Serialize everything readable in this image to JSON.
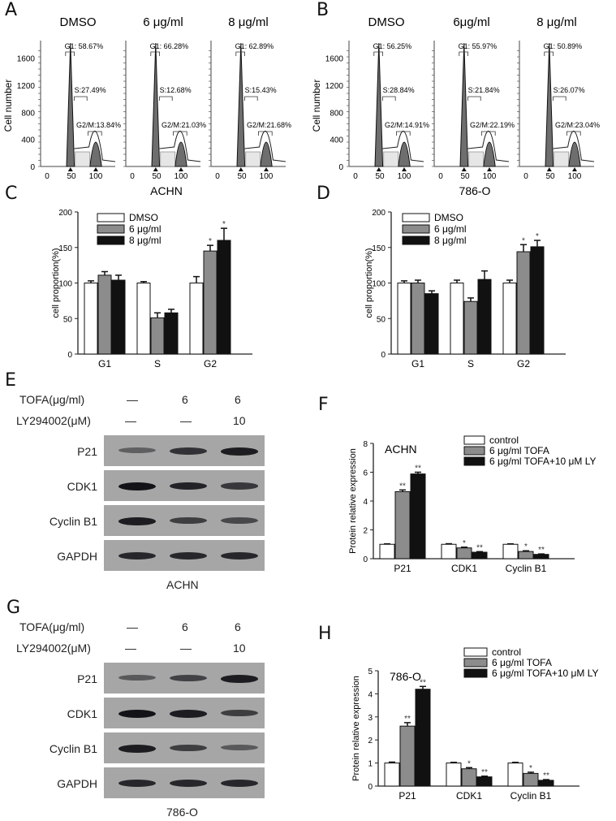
{
  "panels": {
    "A": {
      "letter": "A",
      "cell_line": "ACHN"
    },
    "B": {
      "letter": "B",
      "cell_line": "786-O"
    },
    "C": {
      "letter": "C"
    },
    "D": {
      "letter": "D"
    },
    "E": {
      "letter": "E",
      "cell_line": "ACHN"
    },
    "F": {
      "letter": "F"
    },
    "G": {
      "letter": "G",
      "cell_line": "786-O"
    },
    "H": {
      "letter": "H"
    }
  },
  "blot": {
    "row_labels": {
      "tofa": "TOFA(μg/ml)",
      "ly": "LY294002(μM)"
    },
    "tofa_values": [
      "—",
      "6",
      "6"
    ],
    "ly_values": [
      "—",
      "—",
      "10"
    ],
    "proteins": [
      "P21",
      "CDK1",
      "Cyclin B1",
      "GAPDH"
    ]
  },
  "colors": {
    "control": "#ffffff",
    "mid": "#8c8c8c",
    "high": "#111111",
    "peak_fill": "#6e6e6e",
    "blot_bg": "#a6a6a6"
  },
  "chart_data": [
    {
      "id": "A",
      "type": "histogram",
      "title": "ACHN",
      "ylabel": "Cell number",
      "yticks": [
        0,
        400,
        800,
        1200,
        1600
      ],
      "xticks": [
        0,
        50,
        100
      ],
      "subplots": [
        {
          "title": "DMSO",
          "G1": "G1: 58.67%",
          "S": "S:27.49%",
          "G2M": "G2/M:13.84%"
        },
        {
          "title": "6 μg/ml",
          "G1": "G1: 66.28%",
          "S": "S:12.68%",
          "G2M": "G2/M:21.03%"
        },
        {
          "title": "8 μg/ml",
          "G1": "G1: 62.89%",
          "S": "S:15.43%",
          "G2M": "G2/M:21.68%"
        }
      ]
    },
    {
      "id": "B",
      "type": "histogram",
      "title": "786-O",
      "ylabel": "Cell number",
      "yticks": [
        0,
        400,
        800,
        1200,
        1600
      ],
      "xticks": [
        0,
        50,
        100
      ],
      "subplots": [
        {
          "title": "DMSO",
          "G1": "G1: 56.25%",
          "S": "S:28.84%",
          "G2M": "G2/M:14.91%"
        },
        {
          "title": "6μg/ml",
          "G1": "G1: 55.97%",
          "S": "S:21.84%",
          "G2M": "G2/M:22.19%"
        },
        {
          "title": "8 μg/ml",
          "G1": "G1: 50.89%",
          "S": "S:26.07%",
          "G2M": "G2/M:23.04%"
        }
      ]
    },
    {
      "id": "C",
      "type": "bar",
      "ylabel": "cell proportion(%)",
      "ylim": [
        0,
        200
      ],
      "yticks": [
        0,
        50,
        100,
        150,
        200
      ],
      "categories": [
        "G1",
        "S",
        "G2"
      ],
      "series": [
        {
          "name": "DMSO",
          "values": [
            100,
            100,
            100
          ],
          "errors": [
            3,
            2,
            9
          ],
          "sig": [
            "",
            "",
            ""
          ]
        },
        {
          "name": "6 μg/ml",
          "values": [
            111,
            51,
            145
          ],
          "errors": [
            5,
            7,
            8
          ],
          "sig": [
            "",
            "",
            "*"
          ]
        },
        {
          "name": "8 μg/ml",
          "values": [
            104,
            58,
            160
          ],
          "errors": [
            7,
            5,
            17
          ],
          "sig": [
            "",
            "",
            "*"
          ]
        }
      ]
    },
    {
      "id": "D",
      "type": "bar",
      "ylabel": "cell proportion(%)",
      "ylim": [
        0,
        200
      ],
      "yticks": [
        0,
        50,
        100,
        150,
        200
      ],
      "categories": [
        "G1",
        "S",
        "G2"
      ],
      "series": [
        {
          "name": "DMSO",
          "values": [
            100,
            100,
            100
          ],
          "errors": [
            3,
            4,
            4
          ],
          "sig": [
            "",
            "",
            ""
          ]
        },
        {
          "name": "6 μg/ml",
          "values": [
            100,
            74,
            144
          ],
          "errors": [
            4,
            5,
            10
          ],
          "sig": [
            "",
            "",
            "*"
          ]
        },
        {
          "name": "8 μg/ml",
          "values": [
            85,
            105,
            151
          ],
          "errors": [
            4,
            12,
            9
          ],
          "sig": [
            "",
            "",
            "*"
          ]
        }
      ]
    },
    {
      "id": "F",
      "type": "bar",
      "annotation": "ACHN",
      "ylabel": "Protein relative expression",
      "ylim": [
        0,
        8
      ],
      "yticks": [
        0,
        2,
        4,
        6,
        8
      ],
      "categories": [
        "P21",
        "CDK1",
        "Cyclin B1"
      ],
      "series": [
        {
          "name": "control",
          "values": [
            1.0,
            1.0,
            1.0
          ],
          "errors": [
            0.03,
            0.04,
            0.03
          ],
          "sig": [
            "",
            "",
            ""
          ]
        },
        {
          "name": "6 μg/ml TOFA",
          "values": [
            4.65,
            0.75,
            0.5
          ],
          "errors": [
            0.12,
            0.05,
            0.05
          ],
          "sig": [
            "**",
            "*",
            "*"
          ]
        },
        {
          "name": "6 μg/ml TOFA+10 μM LY",
          "values": [
            5.88,
            0.45,
            0.3
          ],
          "errors": [
            0.12,
            0.04,
            0.03
          ],
          "sig": [
            "**",
            "**",
            "**"
          ]
        }
      ]
    },
    {
      "id": "H",
      "type": "bar",
      "annotation": "786-O",
      "ylabel": "Protein relative expression",
      "ylim": [
        0,
        5
      ],
      "yticks": [
        0,
        1,
        2,
        3,
        4,
        5
      ],
      "categories": [
        "P21",
        "CDK1",
        "Cyclin B1"
      ],
      "series": [
        {
          "name": "control",
          "values": [
            1.0,
            1.0,
            1.0
          ],
          "errors": [
            0.04,
            0.03,
            0.03
          ],
          "sig": [
            "",
            "",
            ""
          ]
        },
        {
          "name": "6 μg/ml TOFA",
          "values": [
            2.6,
            0.75,
            0.55
          ],
          "errors": [
            0.15,
            0.05,
            0.05
          ],
          "sig": [
            "**",
            "*",
            "*"
          ]
        },
        {
          "name": "6 μg/ml TOFA+10 μM LY",
          "values": [
            4.2,
            0.4,
            0.25
          ],
          "errors": [
            0.12,
            0.03,
            0.03
          ],
          "sig": [
            "**",
            "**",
            "**"
          ]
        }
      ]
    }
  ]
}
